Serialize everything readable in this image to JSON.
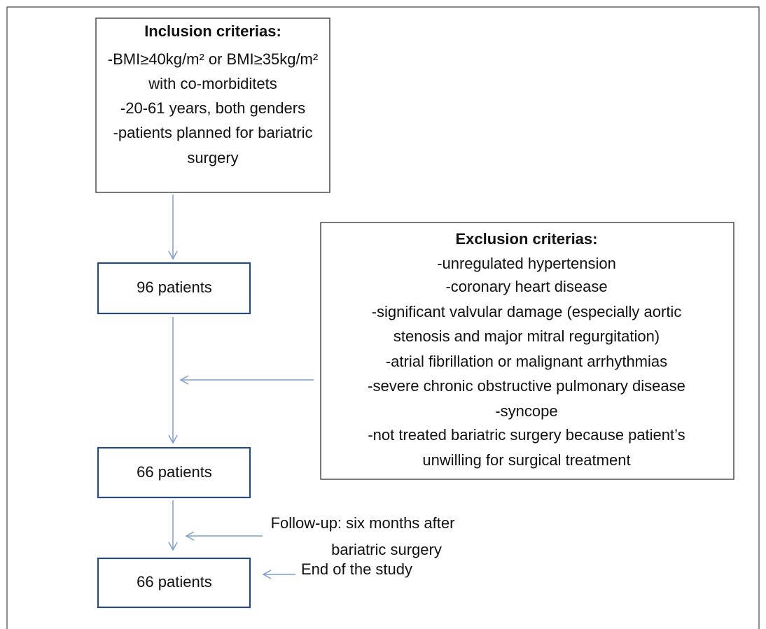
{
  "nodes": [
    {
      "title": "Inclusion criterias:",
      "lines": [
        "-BMI≥40kg/m² or BMI≥35kg/m²",
        "with co-morbiditets",
        "-20-61 years, both genders",
        "-patients planned for bariatric",
        "surgery"
      ]
    },
    {
      "label": "96 patients"
    },
    {
      "title": "Exclusion criterias:",
      "lines": [
        "-unregulated hypertension",
        "-coronary heart disease",
        "-significant valvular damage (especially aortic",
        "stenosis and major mitral regurgitation)",
        "-atrial fibrillation or malignant arrhythmias",
        "-severe chronic obstructive pulmonary disease",
        "-syncope",
        "-not treated bariatric surgery because patient’s",
        "unwilling for surgical treatment"
      ]
    },
    {
      "label": "66 patients"
    },
    {
      "label": "66 patients"
    }
  ],
  "annotations": [
    {
      "lines": [
        "Follow-up: six months after",
        "bariatric surgery"
      ]
    },
    {
      "lines": [
        "End of the study"
      ]
    }
  ]
}
